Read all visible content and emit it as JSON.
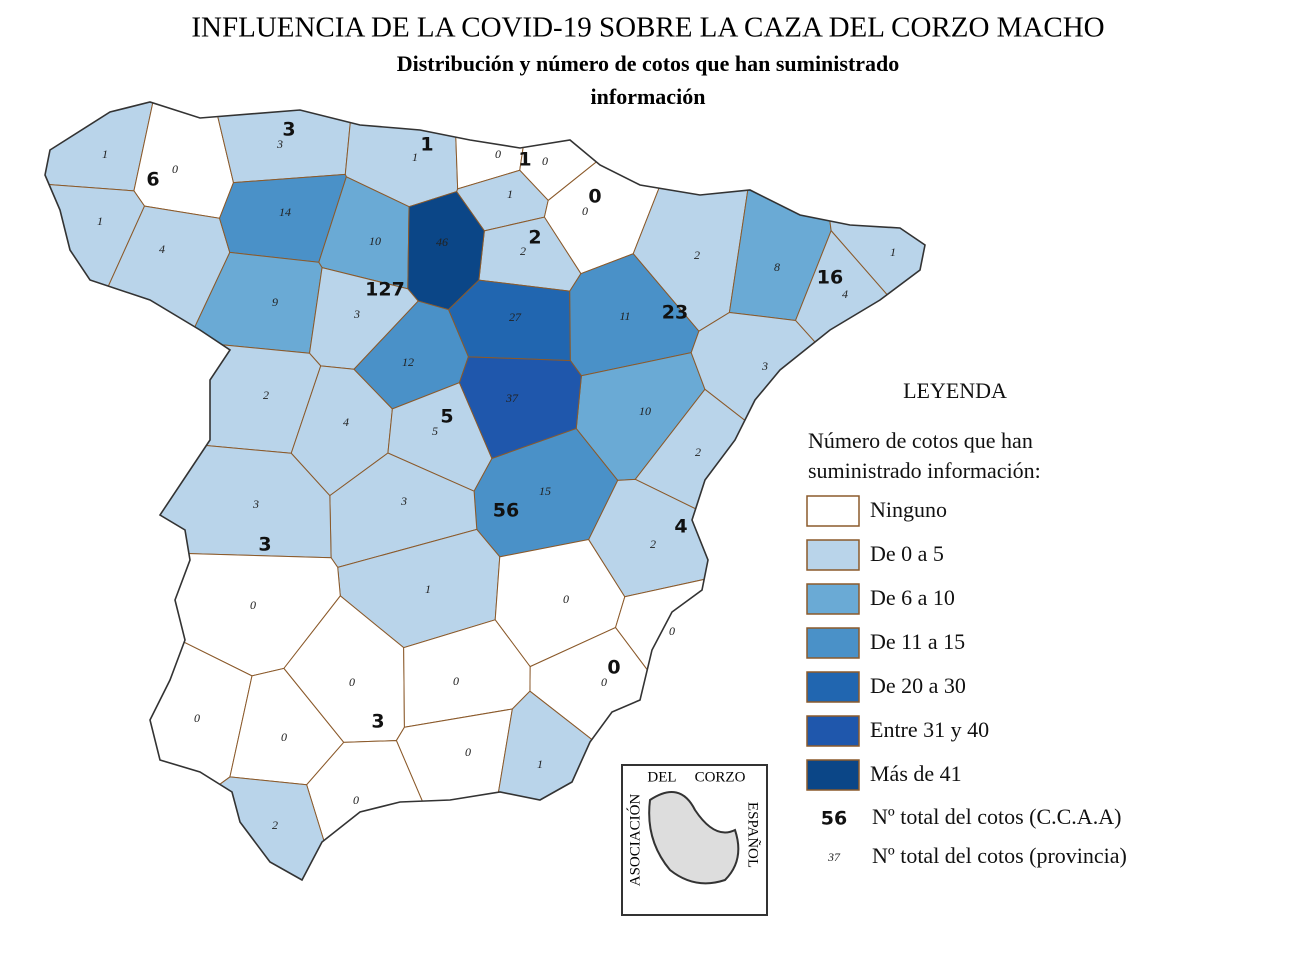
{
  "title": "INFLUENCIA DE LA COVID-19 SOBRE LA CAZA DEL CORZO MACHO",
  "subtitle": [
    "Distribución y número de cotos que han suministrado",
    "información"
  ],
  "legend": {
    "title": "LEYENDA",
    "subtitle": [
      "Número de cotos que han",
      "suministrado información:"
    ],
    "items": [
      {
        "label": "Ninguno",
        "color": "#ffffff"
      },
      {
        "label": "De 0 a 5",
        "color": "#b9d4ea"
      },
      {
        "label": "De 6 a 10",
        "color": "#6aaad5"
      },
      {
        "label": "De 11 a 15",
        "color": "#4a91c8"
      },
      {
        "label": "De 20 a 30",
        "color": "#2166b0"
      },
      {
        "label": "Entre 31 y 40",
        "color": "#1f57ac"
      },
      {
        "label": "Más de 41",
        "color": "#0b4687"
      }
    ],
    "total_ccaa": {
      "sample": 56,
      "label": "Nº total del cotos (C.C.A.A)"
    },
    "total_provincia": {
      "sample": 37,
      "label": "Nº total del cotos (provincia)"
    }
  },
  "provinces": [
    {
      "value": 1,
      "color": "#b9d4ea"
    },
    {
      "value": 0,
      "color": "#ffffff"
    },
    {
      "value": 1,
      "color": "#b9d4ea"
    },
    {
      "value": 4,
      "color": "#b9d4ea"
    },
    {
      "value": 3,
      "color": "#b9d4ea"
    },
    {
      "value": 1,
      "color": "#b9d4ea"
    },
    {
      "value": 0,
      "color": "#ffffff"
    },
    {
      "value": 0,
      "color": "#ffffff"
    },
    {
      "value": 1,
      "color": "#b9d4ea"
    },
    {
      "value": 0,
      "color": "#ffffff"
    },
    {
      "value": 2,
      "color": "#b9d4ea"
    },
    {
      "value": 14,
      "color": "#4a91c8"
    },
    {
      "value": 10,
      "color": "#6aaad5"
    },
    {
      "value": 46,
      "color": "#0b4687"
    },
    {
      "value": 9,
      "color": "#6aaad5"
    },
    {
      "value": 3,
      "color": "#b9d4ea"
    },
    {
      "value": 27,
      "color": "#2166b0"
    },
    {
      "value": 2,
      "color": "#b9d4ea"
    },
    {
      "value": 4,
      "color": "#b9d4ea"
    },
    {
      "value": 12,
      "color": "#4a91c8"
    },
    {
      "value": 2,
      "color": "#b9d4ea"
    },
    {
      "value": 11,
      "color": "#4a91c8"
    },
    {
      "value": 10,
      "color": "#6aaad5"
    },
    {
      "value": 8,
      "color": "#6aaad5"
    },
    {
      "value": 1,
      "color": "#b9d4ea"
    },
    {
      "value": 4,
      "color": "#b9d4ea"
    },
    {
      "value": 3,
      "color": "#b9d4ea"
    },
    {
      "value": 5,
      "color": "#b9d4ea"
    },
    {
      "value": 37,
      "color": "#1f57ac"
    },
    {
      "value": 15,
      "color": "#4a91c8"
    },
    {
      "value": 3,
      "color": "#b9d4ea"
    },
    {
      "value": 1,
      "color": "#b9d4ea"
    },
    {
      "value": 0,
      "color": "#ffffff"
    },
    {
      "value": 2,
      "color": "#b9d4ea"
    },
    {
      "value": 2,
      "color": "#b9d4ea"
    },
    {
      "value": 0,
      "color": "#ffffff"
    },
    {
      "value": 3,
      "color": "#b9d4ea"
    },
    {
      "value": 0,
      "color": "#ffffff"
    },
    {
      "value": 0,
      "color": "#ffffff"
    },
    {
      "value": 0,
      "color": "#ffffff"
    },
    {
      "value": 0,
      "color": "#ffffff"
    },
    {
      "value": 0,
      "color": "#ffffff"
    },
    {
      "value": 0,
      "color": "#ffffff"
    },
    {
      "value": 0,
      "color": "#ffffff"
    },
    {
      "value": 1,
      "color": "#b9d4ea"
    },
    {
      "value": 0,
      "color": "#ffffff"
    },
    {
      "value": 2,
      "color": "#b9d4ea"
    }
  ],
  "regions": [
    {
      "total": 6
    },
    {
      "total": 3
    },
    {
      "total": 1
    },
    {
      "total": 1
    },
    {
      "total": 0
    },
    {
      "total": 2
    },
    {
      "total": 127
    },
    {
      "total": 23
    },
    {
      "total": 16
    },
    {
      "total": 5
    },
    {
      "total": 56
    },
    {
      "total": 4
    },
    {
      "total": 3
    },
    {
      "total": 0
    },
    {
      "total": 3
    }
  ],
  "logo": [
    "ASOCIACIÓN",
    "DEL",
    "CORZO",
    "ESPAÑOL"
  ]
}
